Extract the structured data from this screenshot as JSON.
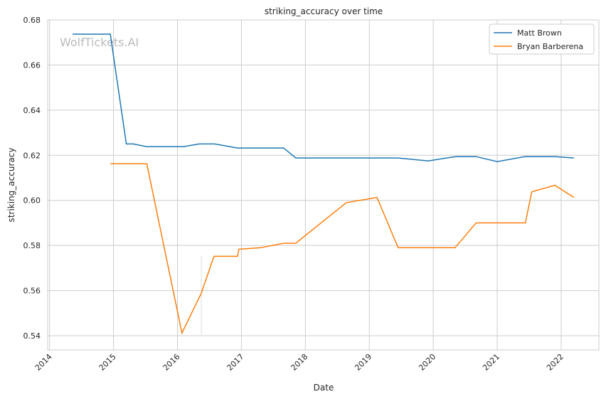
{
  "chart_data": {
    "type": "line",
    "title": "striking_accuracy over time",
    "xlabel": "Date",
    "ylabel": "striking_accuracy",
    "xlim": [
      2013.97,
      2022.59
    ],
    "ylim": [
      0.5337,
      0.68
    ],
    "xticks": [
      2014,
      2015,
      2016,
      2017,
      2018,
      2019,
      2020,
      2021,
      2022
    ],
    "xtick_labels": [
      "2014",
      "2015",
      "2016",
      "2017",
      "2018",
      "2019",
      "2020",
      "2021",
      "2022"
    ],
    "yticks": [
      0.54,
      0.56,
      0.58,
      0.6,
      0.62,
      0.64,
      0.66,
      0.68
    ],
    "ytick_labels": [
      "0.54",
      "0.56",
      "0.58",
      "0.60",
      "0.62",
      "0.64",
      "0.66",
      "0.68"
    ],
    "grid": true,
    "legend_position": "top-right",
    "watermark": "WolfTickets.AI",
    "series": [
      {
        "name": "Matt Brown",
        "color": "#1f77b4",
        "x": [
          2014.36,
          2014.95,
          2015.2,
          2015.31,
          2015.52,
          2016.09,
          2016.34,
          2016.58,
          2016.94,
          2017.66,
          2017.85,
          2019.45,
          2019.92,
          2020.35,
          2020.67,
          2021.0,
          2021.43,
          2021.91,
          2022.2
        ],
        "y": [
          0.6737,
          0.6737,
          0.625,
          0.625,
          0.6238,
          0.6238,
          0.625,
          0.625,
          0.6232,
          0.6232,
          0.6188,
          0.6188,
          0.6175,
          0.6194,
          0.6194,
          0.6172,
          0.6194,
          0.6194,
          0.6188
        ]
      },
      {
        "name": "Bryan Barberena",
        "color": "#ff7f0e",
        "x": [
          2014.95,
          2015.52,
          2016.07,
          2016.37,
          2016.57,
          2016.94,
          2016.96,
          2017.3,
          2017.66,
          2017.85,
          2018.64,
          2019.12,
          2019.45,
          2020.34,
          2020.67,
          2021.44,
          2021.54,
          2021.9,
          2022.2
        ],
        "y": [
          0.6162,
          0.6162,
          0.5412,
          0.5587,
          0.5752,
          0.5752,
          0.5783,
          0.579,
          0.581,
          0.581,
          0.599,
          0.6013,
          0.579,
          0.579,
          0.59,
          0.59,
          0.6038,
          0.6067,
          0.6013
        ]
      }
    ]
  }
}
